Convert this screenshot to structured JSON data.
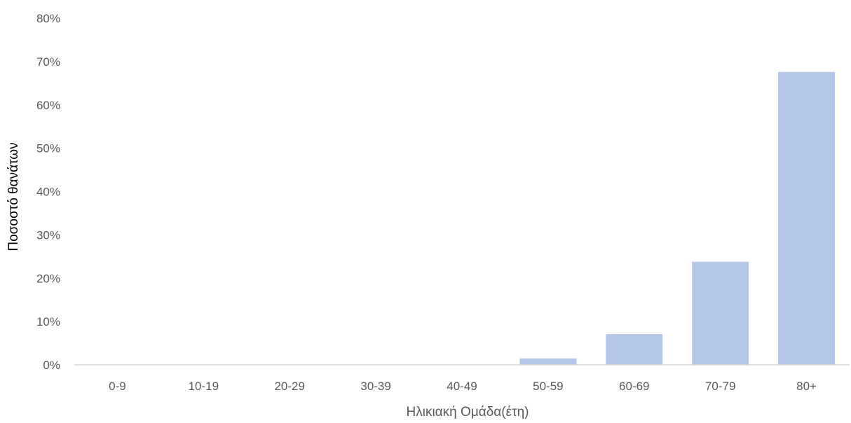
{
  "chart_data": {
    "type": "bar",
    "title": "",
    "xlabel": "Ηλικιακή Ομάδα(έτη)",
    "ylabel": "Ποσοστό θανάτων",
    "categories": [
      "0-9",
      "10-19",
      "20-29",
      "30-39",
      "40-49",
      "50-59",
      "60-69",
      "70-79",
      "80+"
    ],
    "values": [
      0,
      0,
      0,
      0,
      0,
      1.5,
      7.1,
      23.8,
      67.6
    ],
    "ylim": [
      0,
      80
    ],
    "yticks": [
      0,
      10,
      20,
      30,
      40,
      50,
      60,
      70,
      80
    ],
    "ytick_labels": [
      "0%",
      "10%",
      "20%",
      "30%",
      "40%",
      "50%",
      "60%",
      "70%",
      "80%"
    ],
    "grid": false,
    "legend": "none",
    "bar_color": "#b4c7e7",
    "axis_color": "#d9d9d9"
  }
}
